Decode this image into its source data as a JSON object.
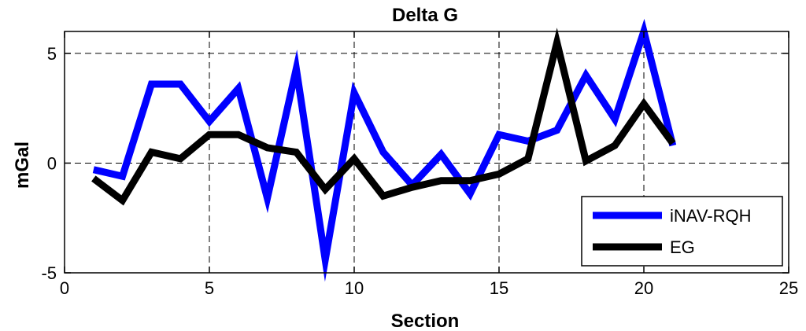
{
  "chart_data": {
    "type": "line",
    "title": "Delta G",
    "xlabel": "Section",
    "ylabel": "mGal",
    "xlim": [
      0,
      25
    ],
    "ylim": [
      -5,
      6
    ],
    "xticks": [
      0,
      5,
      10,
      15,
      20,
      25
    ],
    "yticks": [
      -5,
      0,
      5
    ],
    "grid": true,
    "legend_position": "bottom-right",
    "series": [
      {
        "name": "iNAV-RQH",
        "color": "#0000ff",
        "x": [
          1,
          2,
          3,
          4,
          5,
          6,
          7,
          8,
          9,
          10,
          11,
          12,
          13,
          14,
          15,
          16,
          17,
          18,
          19,
          20,
          21
        ],
        "y": [
          -0.3,
          -0.6,
          3.6,
          3.6,
          1.9,
          3.4,
          -1.6,
          4.3,
          -4.4,
          3.2,
          0.5,
          -1.0,
          0.4,
          -1.4,
          1.3,
          1.0,
          1.5,
          4.0,
          2.0,
          6.0,
          0.8
        ]
      },
      {
        "name": "EG",
        "color": "#000000",
        "x": [
          1,
          2,
          3,
          4,
          5,
          6,
          7,
          8,
          9,
          10,
          11,
          12,
          13,
          14,
          15,
          16,
          17,
          18,
          19,
          20,
          21
        ],
        "y": [
          -0.7,
          -1.7,
          0.5,
          0.2,
          1.3,
          1.3,
          0.7,
          0.5,
          -1.2,
          0.2,
          -1.5,
          -1.1,
          -0.8,
          -0.8,
          -0.5,
          0.2,
          5.5,
          0.1,
          0.8,
          2.7,
          0.9
        ]
      }
    ]
  }
}
